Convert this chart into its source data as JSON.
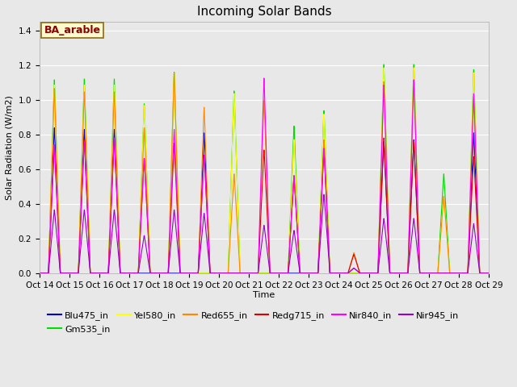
{
  "title": "Incoming Solar Bands",
  "xlabel": "Time",
  "ylabel": "Solar Radiation (W/m2)",
  "annotation": "BA_arable",
  "ylim": [
    0,
    1.45
  ],
  "series": [
    {
      "name": "Blu475_in",
      "color": "#0000cc"
    },
    {
      "name": "Gm535_in",
      "color": "#00dd00"
    },
    {
      "name": "Yel580_in",
      "color": "#ffff00"
    },
    {
      "name": "Red655_in",
      "color": "#ff8800"
    },
    {
      "name": "Redg715_in",
      "color": "#dd0000"
    },
    {
      "name": "Nir840_in",
      "color": "#ff00ff"
    },
    {
      "name": "Nir945_in",
      "color": "#9900cc"
    }
  ],
  "day_peaks": {
    "14": {
      "Blu": 0.85,
      "Grn": 1.13,
      "Yel": 1.1,
      "Red": 1.08,
      "Redg": 0.75,
      "Nir840": 0.75,
      "Nir945": 0.37
    },
    "15": {
      "Blu": 0.84,
      "Grn": 1.135,
      "Yel": 1.1,
      "Red": 1.06,
      "Redg": 0.78,
      "Nir840": 0.77,
      "Nir945": 0.37
    },
    "16": {
      "Blu": 0.84,
      "Grn": 1.135,
      "Yel": 1.1,
      "Red": 1.06,
      "Redg": 0.79,
      "Nir840": 0.79,
      "Nir945": 0.37
    },
    "17": {
      "Blu": 0.0,
      "Grn": 0.99,
      "Yel": 0.98,
      "Red": 0.85,
      "Redg": 0.67,
      "Nir840": 0.67,
      "Nir945": 0.22
    },
    "18": {
      "Blu": 0.0,
      "Grn": 1.175,
      "Yel": 1.17,
      "Red": 1.17,
      "Redg": 0.76,
      "Nir840": 0.84,
      "Nir945": 0.37
    },
    "19": {
      "Blu": 0.82,
      "Grn": 0.0,
      "Yel": 0.0,
      "Red": 0.97,
      "Redg": 0.69,
      "Nir840": 0.69,
      "Nir945": 0.35
    },
    "20": {
      "Blu": 0.0,
      "Grn": 1.065,
      "Yel": 1.05,
      "Red": 0.58,
      "Redg": 0.0,
      "Nir840": 0.0,
      "Nir945": 0.0
    },
    "21": {
      "Blu": 0.0,
      "Grn": 0.0,
      "Yel": 0.0,
      "Red": 1.01,
      "Redg": 0.72,
      "Nir840": 1.14,
      "Nir945": 0.28
    },
    "22": {
      "Blu": 0.0,
      "Grn": 0.86,
      "Yel": 0.78,
      "Red": 0.57,
      "Redg": 0.57,
      "Nir840": 0.57,
      "Nir945": 0.25
    },
    "23": {
      "Blu": 0.77,
      "Grn": 0.95,
      "Yel": 0.93,
      "Red": 0.78,
      "Redg": 0.72,
      "Nir840": 0.73,
      "Nir945": 0.46
    },
    "24": {
      "Blu": 0.0,
      "Grn": 0.0,
      "Yel": 0.0,
      "Red": 0.12,
      "Redg": 0.11,
      "Nir840": 0.03,
      "Nir945": 0.03
    },
    "25": {
      "Blu": 0.77,
      "Grn": 1.22,
      "Yel": 1.2,
      "Red": 1.12,
      "Redg": 0.79,
      "Nir840": 1.1,
      "Nir945": 0.32
    },
    "26": {
      "Blu": 0.78,
      "Grn": 1.22,
      "Yel": 1.2,
      "Red": 1.13,
      "Redg": 0.77,
      "Nir840": 1.13,
      "Nir945": 0.32
    },
    "27": {
      "Blu": 0.0,
      "Grn": 0.58,
      "Yel": 0.45,
      "Red": 0.45,
      "Redg": 0.0,
      "Nir840": 0.0,
      "Nir945": 0.0
    },
    "28": {
      "Blu": 0.82,
      "Grn": 1.19,
      "Yel": 1.17,
      "Red": 1.04,
      "Redg": 0.68,
      "Nir840": 1.05,
      "Nir945": 0.29
    }
  },
  "background_color": "#e8e8e8",
  "grid_color": "#ffffff",
  "title_fontsize": 11,
  "legend_fontsize": 8,
  "tick_fontsize": 7.5,
  "figsize": [
    6.4,
    4.8
  ],
  "dpi": 100
}
